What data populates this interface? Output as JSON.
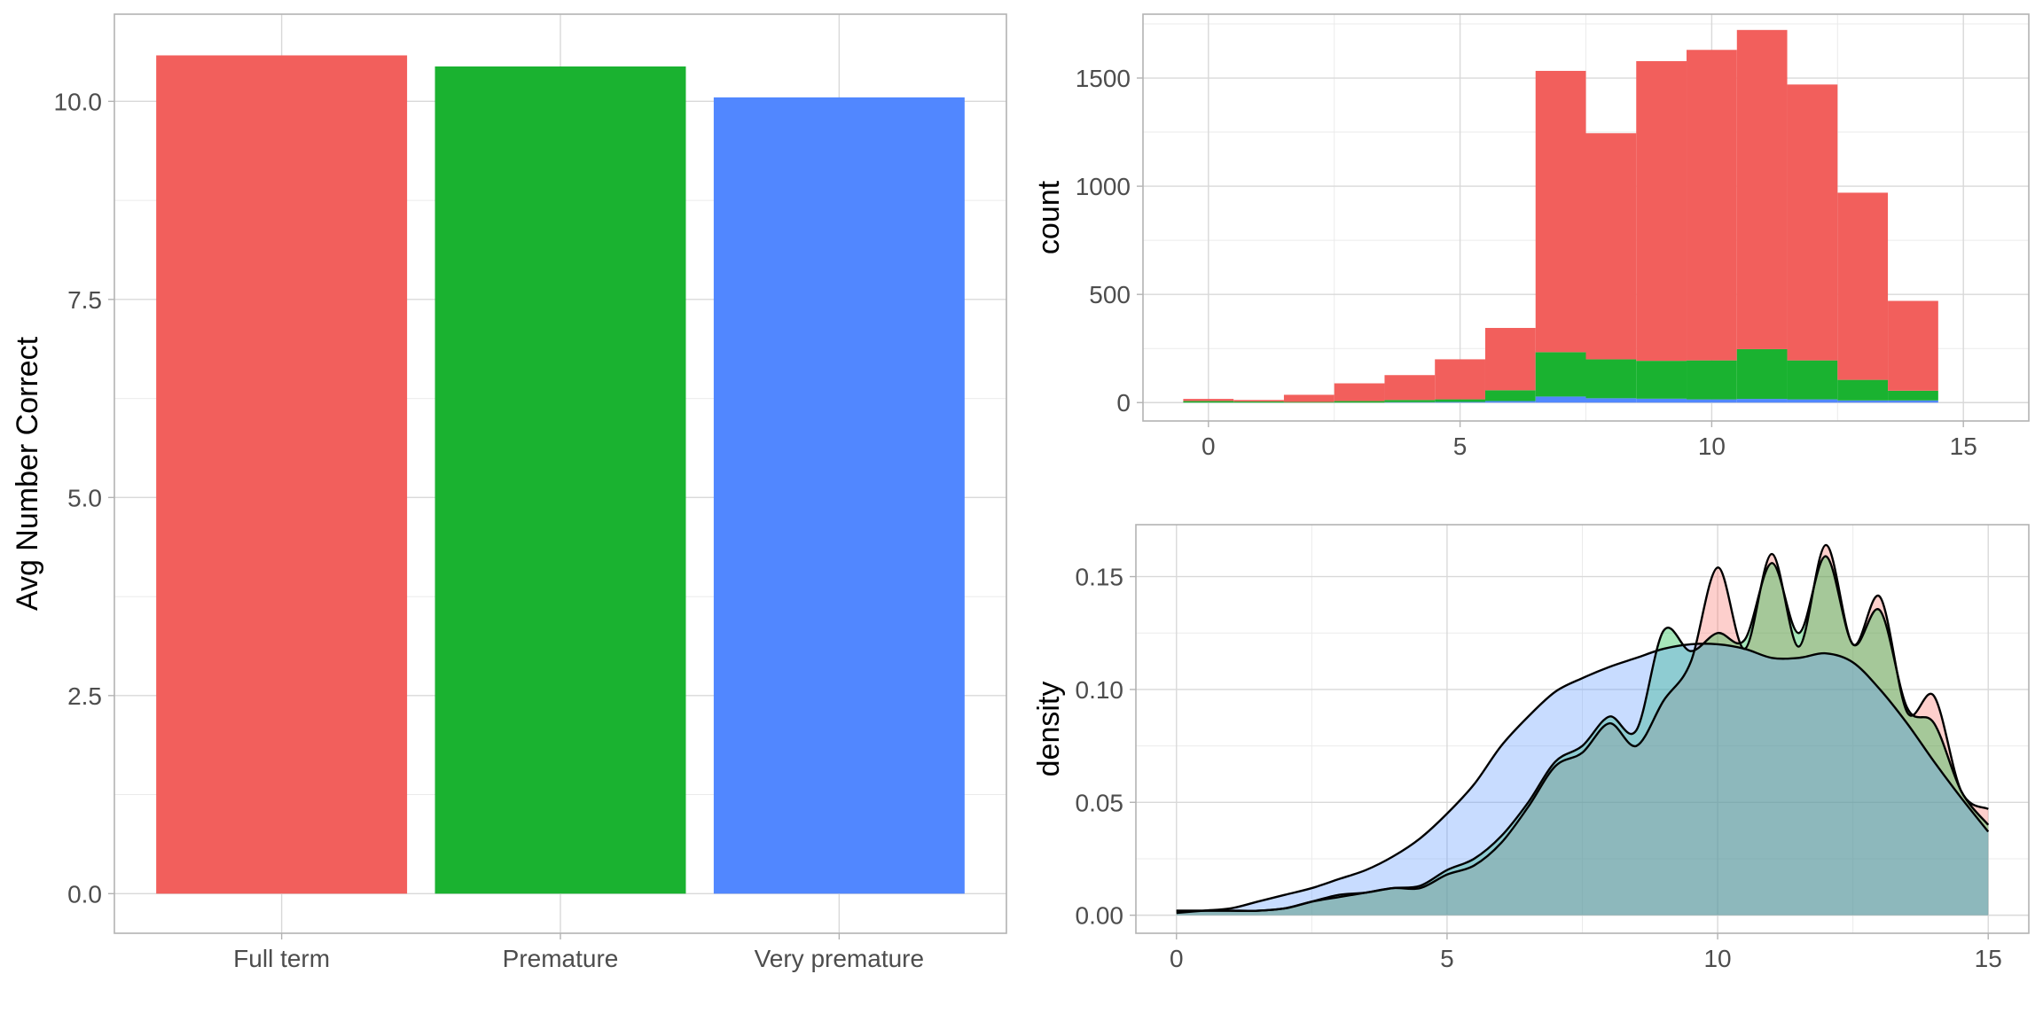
{
  "colors": {
    "full_term": "#F25F5C",
    "premature": "#1AB230",
    "very_premature": "#5187FF"
  },
  "chart_data": [
    {
      "type": "bar",
      "categories": [
        "Full term",
        "Premature",
        "Very premature"
      ],
      "values": [
        10.58,
        10.44,
        10.05
      ],
      "colors": [
        "#F25F5C",
        "#1AB230",
        "#5187FF"
      ],
      "xlabel": "",
      "ylabel": "Avg Number Correct",
      "ylim": [
        -0.5,
        11.1
      ],
      "yticks": [
        0.0,
        2.5,
        5.0,
        7.5,
        10.0
      ],
      "ytick_labels": [
        "0.0",
        "2.5",
        "5.0",
        "7.5",
        "10.0"
      ],
      "grid": true,
      "legend": "none"
    },
    {
      "type": "bar",
      "stacked": true,
      "bin_width": 1,
      "x": [
        0,
        1,
        2,
        3,
        4,
        5,
        6,
        7,
        8,
        9,
        10,
        11,
        12,
        13,
        14,
        15
      ],
      "series": [
        {
          "color": "#F25F5C",
          "values": [
            10,
            7,
            33,
            82,
            115,
            185,
            288,
            1300,
            1045,
            1385,
            1435,
            1475,
            1275,
            865,
            415,
            0
          ]
        },
        {
          "color": "#1AB230",
          "values": [
            7,
            5,
            3,
            7,
            10,
            12,
            50,
            205,
            180,
            175,
            180,
            230,
            180,
            95,
            45,
            0
          ]
        },
        {
          "color": "#5187FF",
          "values": [
            0,
            0,
            0,
            0,
            2,
            3,
            7,
            28,
            20,
            18,
            15,
            17,
            15,
            10,
            10,
            0
          ]
        }
      ],
      "xlabel": "",
      "ylabel": "count",
      "xlim": [
        -1.3,
        16.3
      ],
      "ylim": [
        -85,
        1795
      ],
      "xticks": [
        0,
        5,
        10,
        15
      ],
      "yticks": [
        0,
        500,
        1000,
        1500
      ],
      "grid": true,
      "legend": "none"
    },
    {
      "type": "area",
      "x": [
        0,
        0.5,
        1,
        1.5,
        2,
        2.5,
        3,
        3.5,
        4,
        4.5,
        5,
        5.5,
        6,
        6.5,
        7,
        7.5,
        8,
        8.5,
        9,
        9.5,
        10,
        10.5,
        11,
        11.5,
        12,
        12.5,
        13,
        13.5,
        14,
        14.5,
        15
      ],
      "series": [
        {
          "fill": "#F8766D",
          "fill_opacity": 0.35,
          "stroke": "#000000",
          "values": [
            0.002,
            0.002,
            0.002,
            0.002,
            0.003,
            0.006,
            0.008,
            0.01,
            0.012,
            0.012,
            0.018,
            0.022,
            0.032,
            0.048,
            0.066,
            0.072,
            0.085,
            0.075,
            0.095,
            0.112,
            0.154,
            0.118,
            0.16,
            0.119,
            0.164,
            0.12,
            0.141,
            0.09,
            0.097,
            0.055,
            0.047
          ]
        },
        {
          "fill": "#00BA38",
          "fill_opacity": 0.35,
          "stroke": "#000000",
          "values": [
            0.002,
            0.002,
            0.002,
            0.002,
            0.003,
            0.006,
            0.009,
            0.01,
            0.012,
            0.013,
            0.02,
            0.025,
            0.035,
            0.05,
            0.068,
            0.075,
            0.088,
            0.082,
            0.126,
            0.117,
            0.125,
            0.122,
            0.156,
            0.125,
            0.159,
            0.12,
            0.135,
            0.092,
            0.085,
            0.055,
            0.04
          ]
        },
        {
          "fill": "#619CFF",
          "fill_opacity": 0.35,
          "stroke": "#000000",
          "values": [
            0.001,
            0.002,
            0.003,
            0.006,
            0.009,
            0.012,
            0.016,
            0.02,
            0.026,
            0.034,
            0.045,
            0.058,
            0.075,
            0.088,
            0.099,
            0.105,
            0.11,
            0.114,
            0.118,
            0.12,
            0.12,
            0.118,
            0.114,
            0.114,
            0.116,
            0.112,
            0.1,
            0.085,
            0.068,
            0.052,
            0.037
          ]
        }
      ],
      "xlabel": "",
      "ylabel": "density",
      "xlim": [
        -0.75,
        15.75
      ],
      "ylim": [
        -0.008,
        0.173
      ],
      "xticks": [
        0,
        5,
        10,
        15
      ],
      "yticks": [
        0.0,
        0.05,
        0.1,
        0.15
      ],
      "ytick_labels": [
        "0.00",
        "0.05",
        "0.10",
        "0.15"
      ],
      "grid": true,
      "legend": "none"
    }
  ]
}
